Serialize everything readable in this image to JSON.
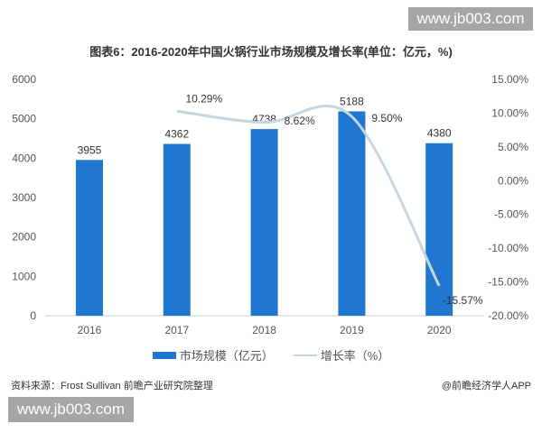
{
  "watermark": "www.jb003.com",
  "source": "资料来源：Frost Sullivan 前瞻产业研究院整理",
  "credit": "@前瞻经济学人APP",
  "chart_data": {
    "type": "bar+line",
    "title": "图表6：2016-2020年中国火锅行业市场规模及增长率(单位：亿元，%)",
    "categories": [
      "2016",
      "2017",
      "2018",
      "2019",
      "2020"
    ],
    "series": [
      {
        "name": "市场规模（亿元）",
        "type": "bar",
        "axis": "left",
        "values": [
          3955,
          4362,
          4738,
          5188,
          4380
        ],
        "labels": [
          "3955",
          "4362",
          "4738",
          "5188",
          "4380"
        ],
        "color": "#1f77d0"
      },
      {
        "name": "增长率（%）",
        "type": "line",
        "axis": "right",
        "smooth": true,
        "values": [
          null,
          10.29,
          8.62,
          9.5,
          -15.57
        ],
        "labels": [
          "",
          "10.29%",
          "8.62%",
          "9.50%",
          "-15.57%"
        ],
        "color": "#c5d6e0"
      }
    ],
    "left_axis": {
      "ylim": [
        0,
        6000
      ],
      "ticks": [
        "0",
        "1000",
        "2000",
        "3000",
        "4000",
        "5000",
        "6000"
      ]
    },
    "right_axis": {
      "ylim": [
        -20,
        15
      ],
      "ticks": [
        "-20.00%",
        "-15.00%",
        "-10.00%",
        "-5.00%",
        "0.00%",
        "5.00%",
        "10.00%",
        "15.00%"
      ]
    },
    "grid": false,
    "legend": "bottom"
  }
}
